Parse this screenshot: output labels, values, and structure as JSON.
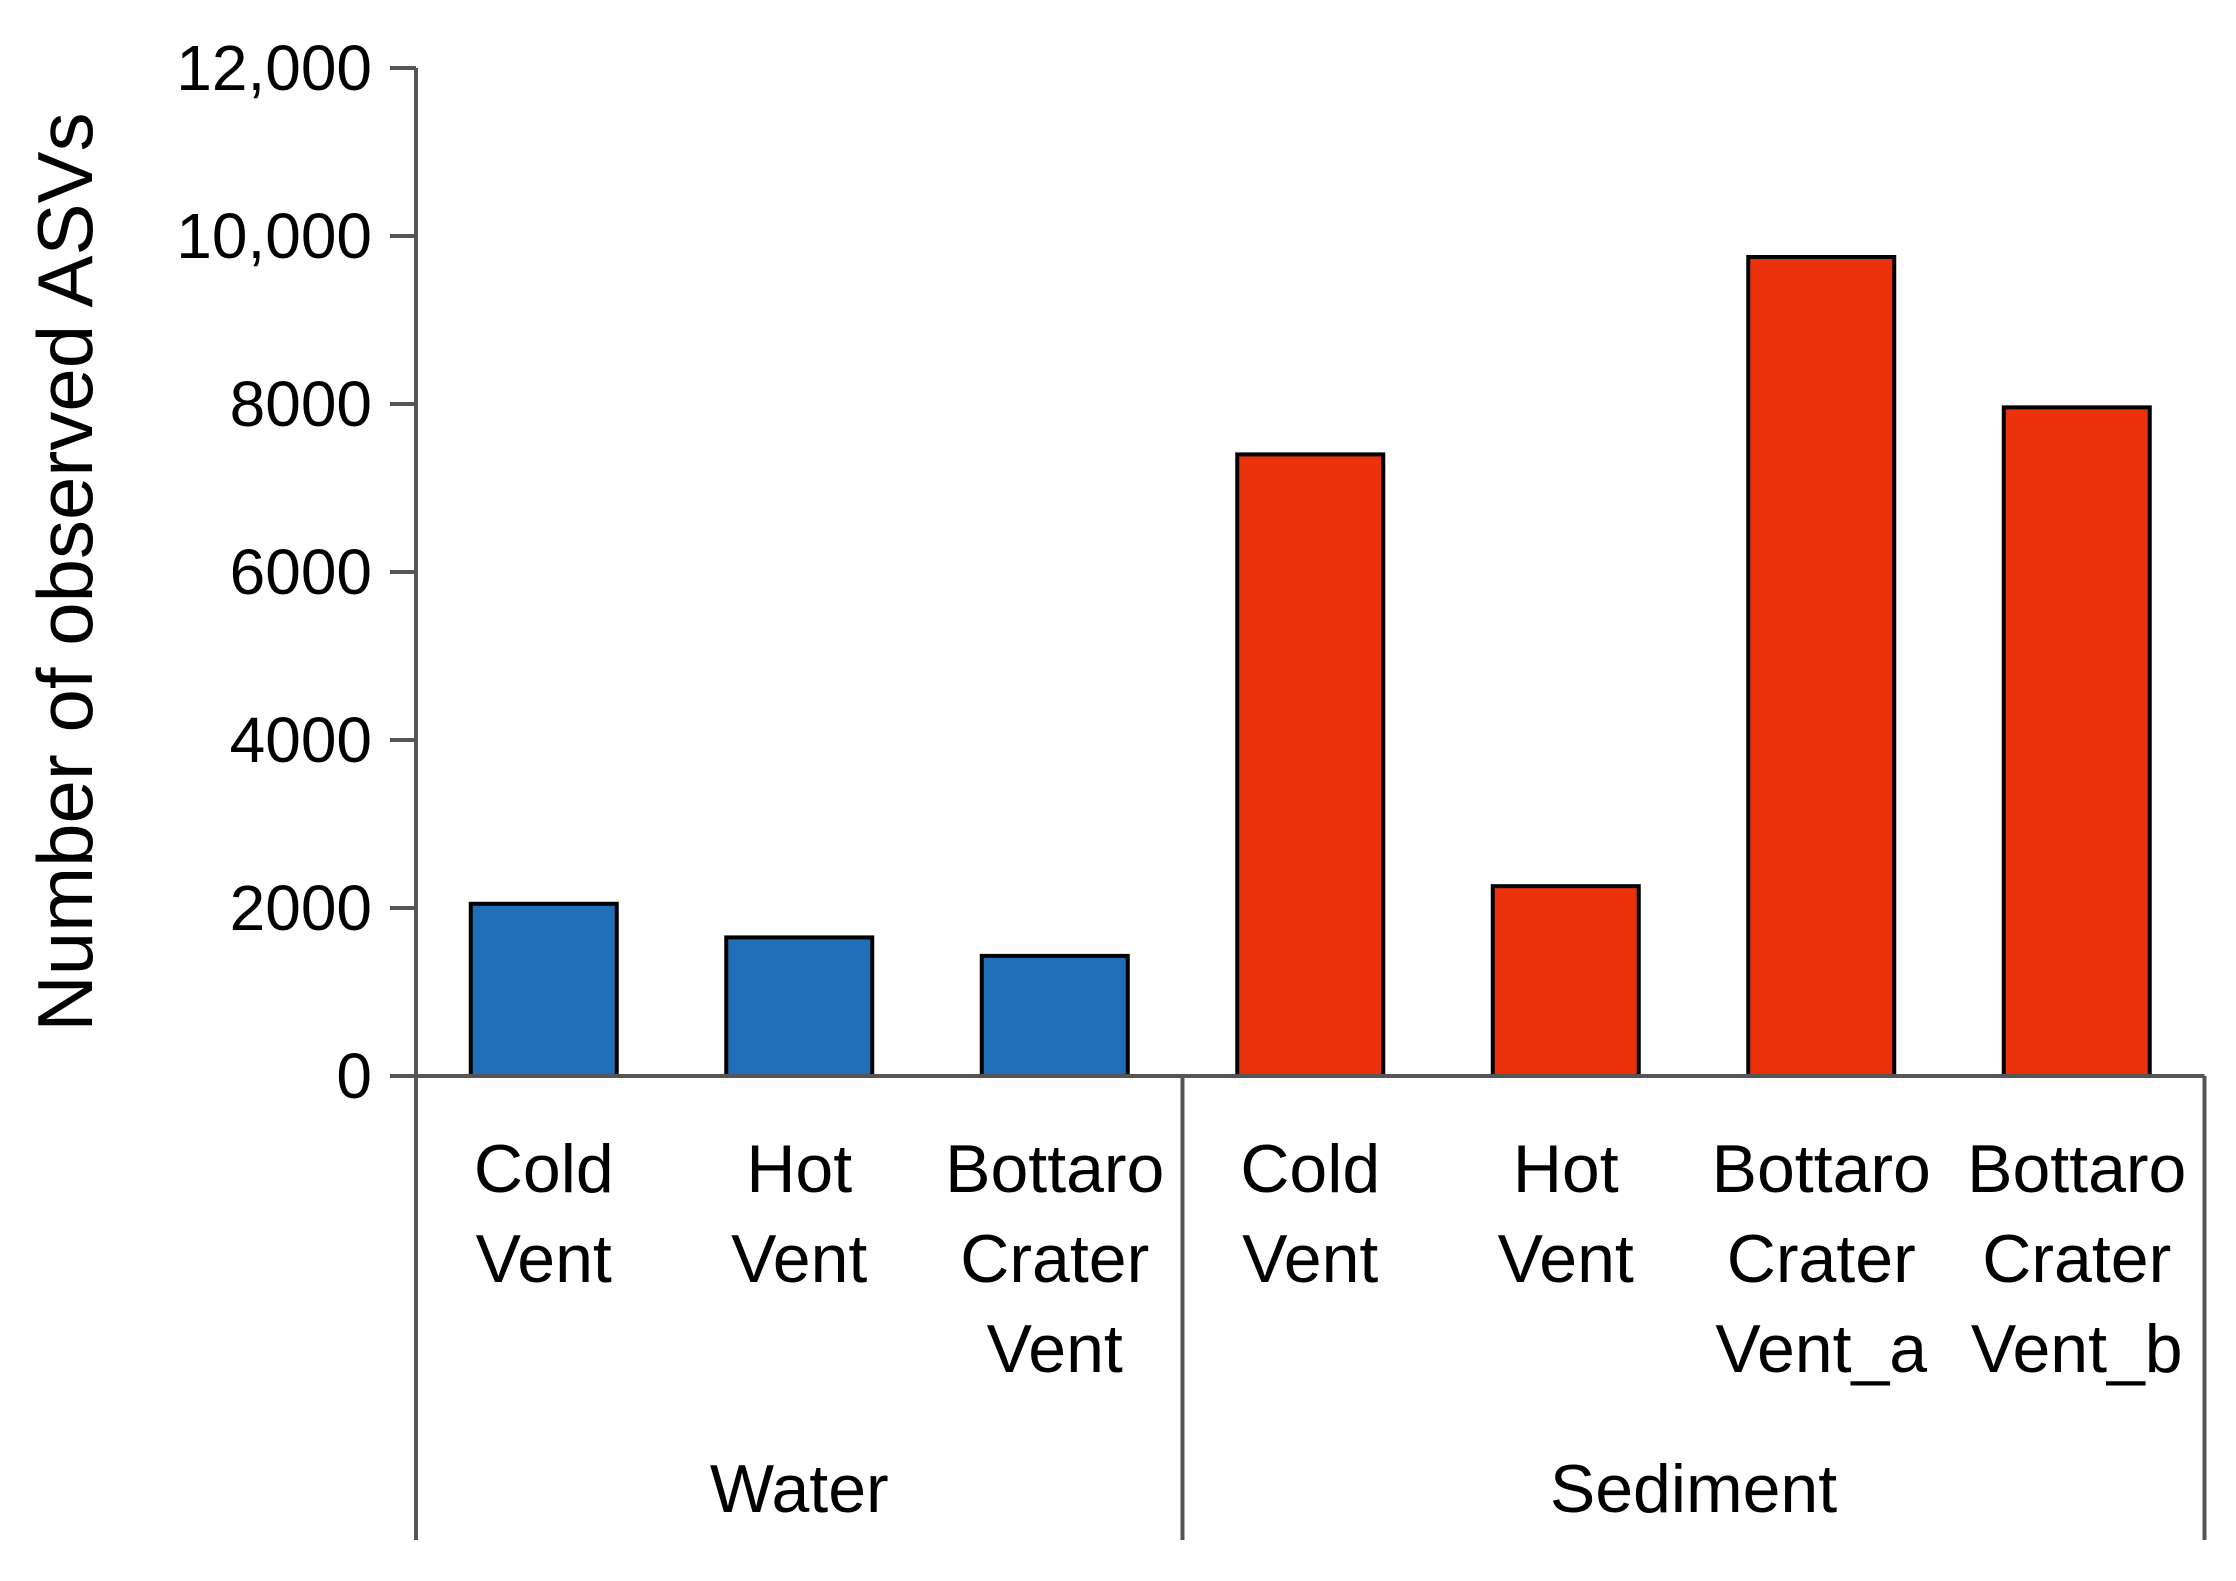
{
  "chart_data": {
    "type": "bar",
    "title": "",
    "xlabel": "",
    "ylabel": "Number of observed ASVs",
    "ylim": [
      0,
      12000
    ],
    "yticks": [
      {
        "value": 0,
        "label": "0"
      },
      {
        "value": 2000,
        "label": "2000"
      },
      {
        "value": 4000,
        "label": "4000"
      },
      {
        "value": 6000,
        "label": "6000"
      },
      {
        "value": 8000,
        "label": "8000"
      },
      {
        "value": 10000,
        "label": "10,000"
      },
      {
        "value": 12000,
        "label": "12,000"
      }
    ],
    "grid": false,
    "groups": [
      {
        "name": "Water",
        "color": "#1F6FB8",
        "start": 0,
        "count": 3
      },
      {
        "name": "Sediment",
        "color": "#EC320C",
        "start": 3,
        "count": 4
      }
    ],
    "bars": [
      {
        "group": "Water",
        "label_lines": [
          "Cold",
          "Vent"
        ],
        "value": 2050
      },
      {
        "group": "Water",
        "label_lines": [
          "Hot",
          "Vent"
        ],
        "value": 1650
      },
      {
        "group": "Water",
        "label_lines": [
          "Bottaro",
          "Crater",
          "Vent"
        ],
        "value": 1430
      },
      {
        "group": "Sediment",
        "label_lines": [
          "Cold",
          "Vent"
        ],
        "value": 7400
      },
      {
        "group": "Sediment",
        "label_lines": [
          "Hot",
          "Vent"
        ],
        "value": 2260
      },
      {
        "group": "Sediment",
        "label_lines": [
          "Bottaro",
          "Crater",
          "Vent_a"
        ],
        "value": 9750
      },
      {
        "group": "Sediment",
        "label_lines": [
          "Bottaro",
          "Crater",
          "Vent_b"
        ],
        "value": 7960
      }
    ]
  }
}
